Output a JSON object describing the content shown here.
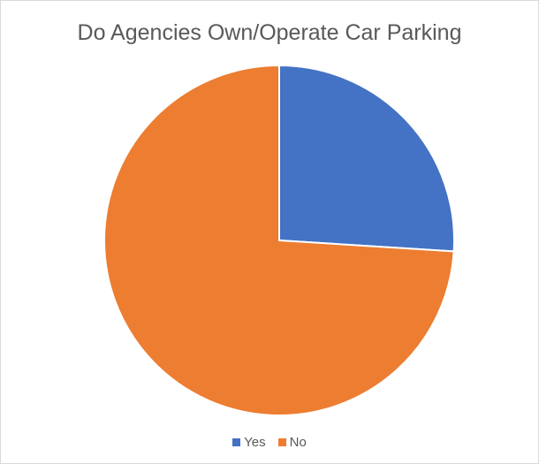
{
  "chart_data": {
    "type": "pie",
    "title": "Do Agencies Own/Operate Car Parking",
    "categories": [
      "Yes",
      "No"
    ],
    "values": [
      26,
      74
    ],
    "colors": [
      "#4472c4",
      "#ed7d31"
    ],
    "legend": "bottom"
  }
}
